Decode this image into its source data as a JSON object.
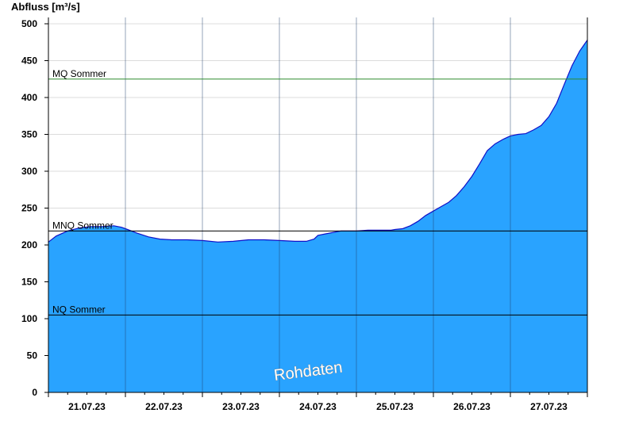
{
  "chart_data": {
    "type": "area",
    "ylabel": "Abfluss [m³/s]",
    "ylim": [
      0,
      500
    ],
    "yticks": [
      0,
      50,
      100,
      150,
      200,
      250,
      300,
      350,
      400,
      450,
      500
    ],
    "xlim_days": [
      0,
      7
    ],
    "xtick_labels": [
      "21.07.23",
      "22.07.23",
      "23.07.23",
      "24.07.23",
      "25.07.23",
      "26.07.23",
      "27.07.23"
    ],
    "grid": true,
    "watermark": "Rohdaten",
    "colors": {
      "area": "#29a3ff",
      "line": "#1010c8",
      "mq_line": "#2e8b2e",
      "ref_line": "#000000"
    },
    "reference_lines": [
      {
        "name": "MQ Sommer",
        "value": 425,
        "color": "#2e8b2e"
      },
      {
        "name": "MNQ Sommer",
        "value": 219,
        "color": "#000000"
      },
      {
        "name": "NQ Sommer",
        "value": 105,
        "color": "#000000"
      }
    ],
    "series": [
      {
        "x_days": [
          0,
          0.1,
          0.25,
          0.4,
          0.55,
          0.7,
          0.85,
          0.95,
          1.0,
          1.15,
          1.3,
          1.45,
          1.6,
          1.8,
          2.0,
          2.2,
          2.4,
          2.6,
          2.8,
          3.0,
          3.2,
          3.35,
          3.45,
          3.5,
          3.6,
          3.8,
          4.0,
          4.15,
          4.3,
          4.45,
          4.5,
          4.6,
          4.7,
          4.8,
          4.9,
          5.0,
          5.1,
          5.2,
          5.3,
          5.4,
          5.5,
          5.6,
          5.7,
          5.8,
          5.9,
          6.0,
          6.1,
          6.2,
          6.3,
          6.4,
          6.5,
          6.6,
          6.7,
          6.8,
          6.9,
          7.0
        ],
        "values": [
          204,
          212,
          219,
          223,
          225,
          225,
          226,
          224,
          222,
          216,
          211,
          208,
          207,
          207,
          206,
          204,
          205,
          207,
          207,
          206,
          205,
          205,
          208,
          213,
          215,
          219,
          219,
          220,
          220,
          220,
          221,
          222,
          226,
          232,
          240,
          246,
          252,
          258,
          267,
          279,
          293,
          310,
          328,
          337,
          343,
          348,
          350,
          351,
          356,
          362,
          374,
          392,
          418,
          443,
          463,
          478
        ]
      }
    ]
  }
}
